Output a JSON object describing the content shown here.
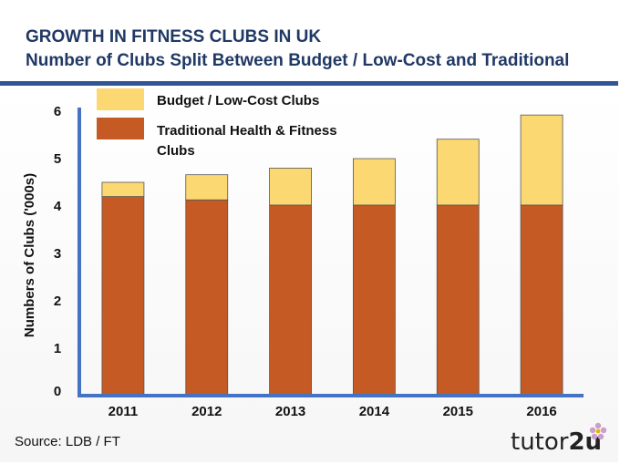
{
  "header": {
    "title": "GROWTH IN FITNESS CLUBS IN UK",
    "subtitle": "Number of Clubs Split Between Budget / Low-Cost and Traditional"
  },
  "chart_data": {
    "type": "bar",
    "stacked": true,
    "categories": [
      "2011",
      "2012",
      "2013",
      "2014",
      "2015",
      "2016"
    ],
    "series": [
      {
        "name": "Traditional Health & Fitness Clubs",
        "color": "#c55a24",
        "values": [
          4.2,
          4.13,
          4.02,
          4.02,
          4.02,
          4.02
        ]
      },
      {
        "name": "Budget / Low-Cost Clubs",
        "color": "#fcd872",
        "values": [
          0.3,
          0.53,
          0.78,
          0.98,
          1.39,
          1.9
        ]
      }
    ],
    "ylabel": "Numbers of Clubs ('000s)",
    "xlabel": "",
    "ylim": [
      0,
      6
    ],
    "yticks": [
      "0",
      "1",
      "2",
      "3",
      "4",
      "5",
      "6"
    ],
    "legend": {
      "position": "top-left",
      "items": [
        {
          "label": "Budget / Low-Cost Clubs",
          "color": "#fcd872"
        },
        {
          "label_line1": "Traditional Health & Fitness",
          "label_line2": "Clubs",
          "color": "#c55a24"
        }
      ]
    },
    "axis_color": "#4472c4"
  },
  "footer": {
    "source": "Source: LDB / FT",
    "brand_prefix": "tutor",
    "brand_suffix": "2u"
  }
}
